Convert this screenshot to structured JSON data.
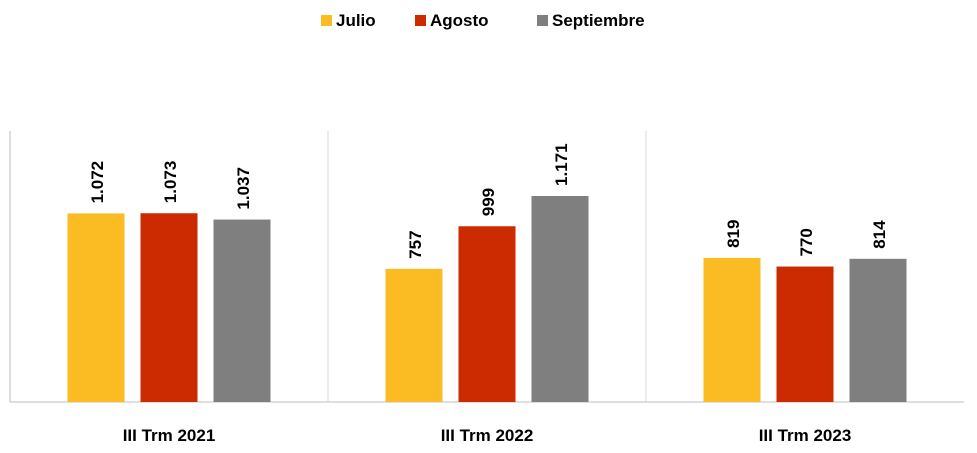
{
  "chart_data": {
    "type": "bar",
    "title": "",
    "xlabel": "",
    "ylabel": "",
    "ylim": [
      0,
      1450
    ],
    "grid": false,
    "legend": {
      "placement": "top-center"
    },
    "categories": [
      "III Trm 2021",
      "III Trm 2022",
      "III Trm 2023"
    ],
    "series": [
      {
        "name": "Julio",
        "color": "#FBBC23",
        "values": [
          1072,
          757,
          819
        ],
        "labels": [
          "1.072",
          "757",
          "819"
        ]
      },
      {
        "name": "Agosto",
        "color": "#CC2A00",
        "values": [
          1073,
          999,
          770
        ],
        "labels": [
          "1.073",
          "999",
          "770"
        ]
      },
      {
        "name": "Septiembre",
        "color": "#7F7F7F",
        "values": [
          1037,
          1171,
          814
        ],
        "labels": [
          "1.037",
          "1.171",
          "814"
        ]
      }
    ]
  },
  "colors": {
    "axis": "#BFBFBF",
    "separator": "#D9D9D9",
    "text": "#000000"
  }
}
